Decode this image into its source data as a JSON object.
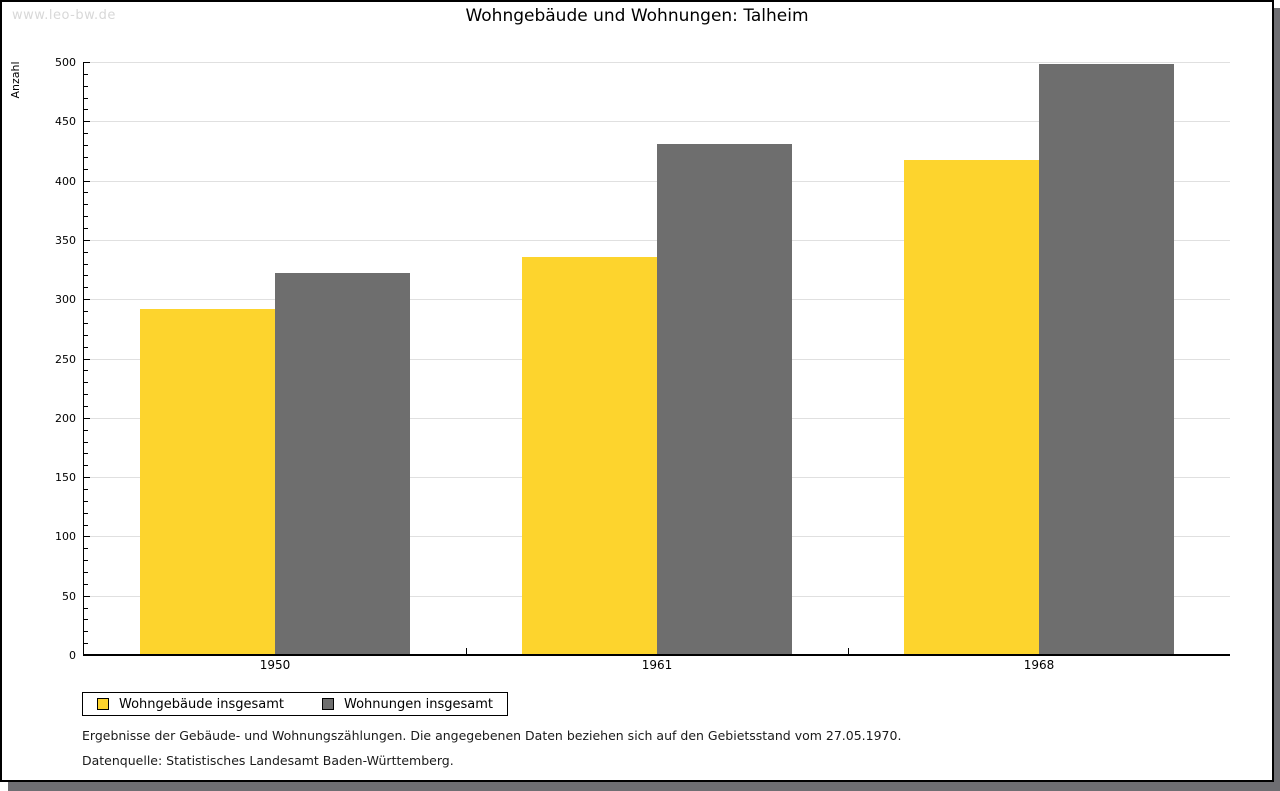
{
  "page": {
    "watermark": "www.leo-bw.de",
    "title": "Wohngebäude und Wohnungen: Talheim",
    "footer_note": "Ergebnisse der Gebäude- und Wohnungszählungen. Die angegebenen Daten beziehen sich auf den Gebietsstand vom 27.05.1970.",
    "footer_source": "Datenquelle: Statistisches Landesamt Baden-Württemberg."
  },
  "chart_data": {
    "type": "bar",
    "title": "Wohngebäude und Wohnungen: Talheim",
    "xlabel": "",
    "ylabel": "Anzahl",
    "categories": [
      "1950",
      "1961",
      "1968"
    ],
    "series": [
      {
        "name": "Wohngebäude insgesamt",
        "color": "#fdd42d",
        "values": [
          292,
          336,
          417
        ]
      },
      {
        "name": "Wohnungen insgesamt",
        "color": "#6e6e6e",
        "values": [
          322,
          431,
          498
        ]
      }
    ],
    "ylim": [
      0,
      500
    ],
    "ytick_step": 50,
    "minor_tick_step": 10,
    "grid": true,
    "legend_position": "bottom-left",
    "colors": {
      "gridline": "#e0e0e0",
      "axis": "#000000",
      "watermark": "#d8d8d8",
      "shadow": "#6e6e72"
    }
  }
}
